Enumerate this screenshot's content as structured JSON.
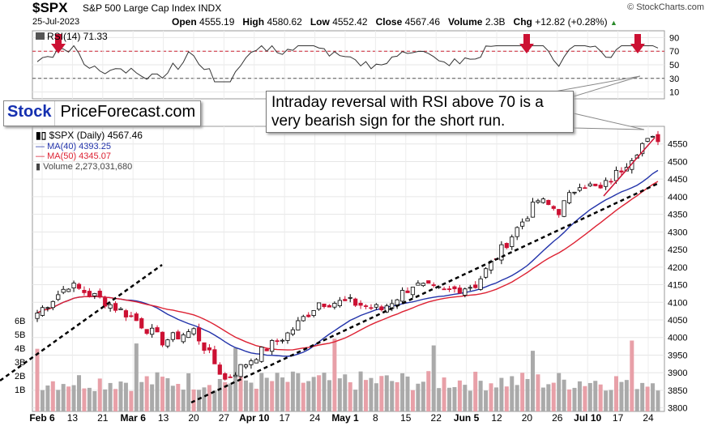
{
  "header": {
    "symbol": "$SPX",
    "name": "S&P 500 Large Cap Index INDX",
    "date": "25-Jul-2023",
    "open_label": "Open",
    "open": "4555.19",
    "high_label": "High",
    "high": "4580.62",
    "low_label": "Low",
    "low": "4552.42",
    "close_label": "Close",
    "close": "4567.46",
    "volume_label": "Volume",
    "volume": "2.3B",
    "chg_label": "Chg",
    "chg": "+12.82 (+0.28%)",
    "copyright": "© StockCharts.com"
  },
  "colors": {
    "up": "#000000",
    "down": "#cc1133",
    "ma40": "#2233aa",
    "ma50": "#dd2233",
    "rsi_line": "#333333",
    "arrow": "#cc1133"
  },
  "logo": {
    "part1": "Stock",
    "part2": "PriceForecast.com"
  },
  "annotation": "Intraday reversal with RSI above 70 is a very bearish sign for the short run.",
  "legend": {
    "price": "$SPX (Daily) 4567.46",
    "ma40": "MA(40) 4393.25",
    "ma50": "MA(50) 4345.07",
    "volume": "Volume 2,273,031,680"
  },
  "chart_data": {
    "type": "candlestick",
    "rsi": {
      "label": "RSI(14) 71.33",
      "ticks": [
        "90",
        "70",
        "50",
        "30",
        "10"
      ],
      "ylim": [
        0,
        100
      ],
      "reference_lines": [
        70,
        30
      ]
    },
    "price": {
      "ylim": [
        3790,
        4600
      ],
      "yticks": [
        "4550",
        "4500",
        "4450",
        "4400",
        "4350",
        "4300",
        "4250",
        "4200",
        "4150",
        "4100",
        "4050",
        "4000",
        "3950",
        "3900",
        "3850",
        "3800"
      ],
      "xticks": [
        "Feb 6",
        "13",
        "21",
        "Mar 6",
        "13",
        "20",
        "27",
        "Apr 10",
        "17",
        "24",
        "May 1",
        "8",
        "15",
        "22",
        "Jun 5",
        "12",
        "20",
        "26",
        "Jul 10",
        "17",
        "24"
      ],
      "volume_ticks": [
        "6B",
        "5B",
        "4B",
        "3B",
        "2B",
        "1B"
      ],
      "ma40_final": 4393.25,
      "ma50_final": 4345.07,
      "last_close": 4567.46
    }
  }
}
